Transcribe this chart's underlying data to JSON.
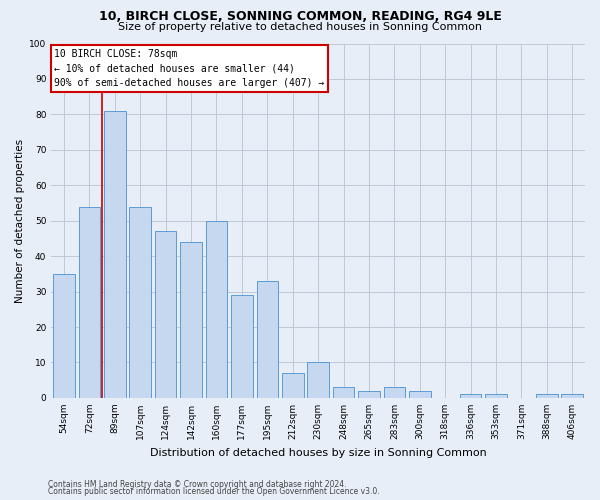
{
  "title": "10, BIRCH CLOSE, SONNING COMMON, READING, RG4 9LE",
  "subtitle": "Size of property relative to detached houses in Sonning Common",
  "xlabel": "Distribution of detached houses by size in Sonning Common",
  "ylabel": "Number of detached properties",
  "categories": [
    "54sqm",
    "72sqm",
    "89sqm",
    "107sqm",
    "124sqm",
    "142sqm",
    "160sqm",
    "177sqm",
    "195sqm",
    "212sqm",
    "230sqm",
    "248sqm",
    "265sqm",
    "283sqm",
    "300sqm",
    "318sqm",
    "336sqm",
    "353sqm",
    "371sqm",
    "388sqm",
    "406sqm"
  ],
  "values": [
    35,
    54,
    81,
    54,
    47,
    44,
    50,
    29,
    33,
    7,
    10,
    3,
    2,
    3,
    2,
    0,
    1,
    1,
    0,
    1,
    1
  ],
  "bar_color": "#c5d8f0",
  "bar_edge_color": "#5b9bd5",
  "grid_color": "#c0c8d8",
  "background_color": "#e8eef8",
  "vline_x": 1.5,
  "vline_color": "#cc0000",
  "annotation_line1": "10 BIRCH CLOSE: 78sqm",
  "annotation_line2": "← 10% of detached houses are smaller (44)",
  "annotation_line3": "90% of semi-detached houses are larger (407) →",
  "annotation_box_facecolor": "#ffffff",
  "annotation_box_edgecolor": "#cc0000",
  "ylim_max": 100,
  "yticks": [
    0,
    10,
    20,
    30,
    40,
    50,
    60,
    70,
    80,
    90,
    100
  ],
  "title_fontsize": 9,
  "subtitle_fontsize": 8,
  "ylabel_fontsize": 7.5,
  "xlabel_fontsize": 8,
  "tick_fontsize": 6.5,
  "footer1": "Contains HM Land Registry data © Crown copyright and database right 2024.",
  "footer2": "Contains public sector information licensed under the Open Government Licence v3.0."
}
